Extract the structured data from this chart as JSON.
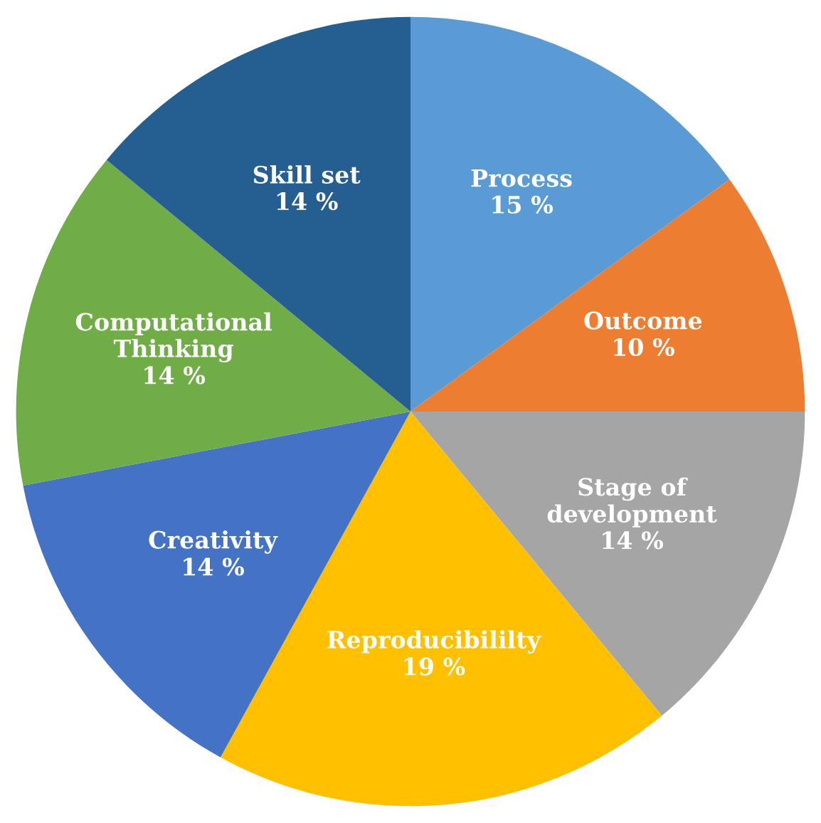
{
  "chart_data": {
    "type": "pie",
    "categories": [
      "Process",
      "Outcome",
      "Stage of\ndevelopment",
      "Reproducibililty",
      "Creativity",
      "Computational\nThinking",
      "Skill set"
    ],
    "values": [
      15,
      10,
      14,
      19,
      14,
      14,
      14
    ],
    "value_labels": [
      "15 %",
      "10 %",
      "14 %",
      "19 %",
      "14 %",
      "14 %",
      "14 %"
    ],
    "colors": [
      "#5b9bd5",
      "#ed7d31",
      "#a5a5a5",
      "#ffc000",
      "#4472c4",
      "#70ad47",
      "#255e91"
    ],
    "legend": false
  }
}
